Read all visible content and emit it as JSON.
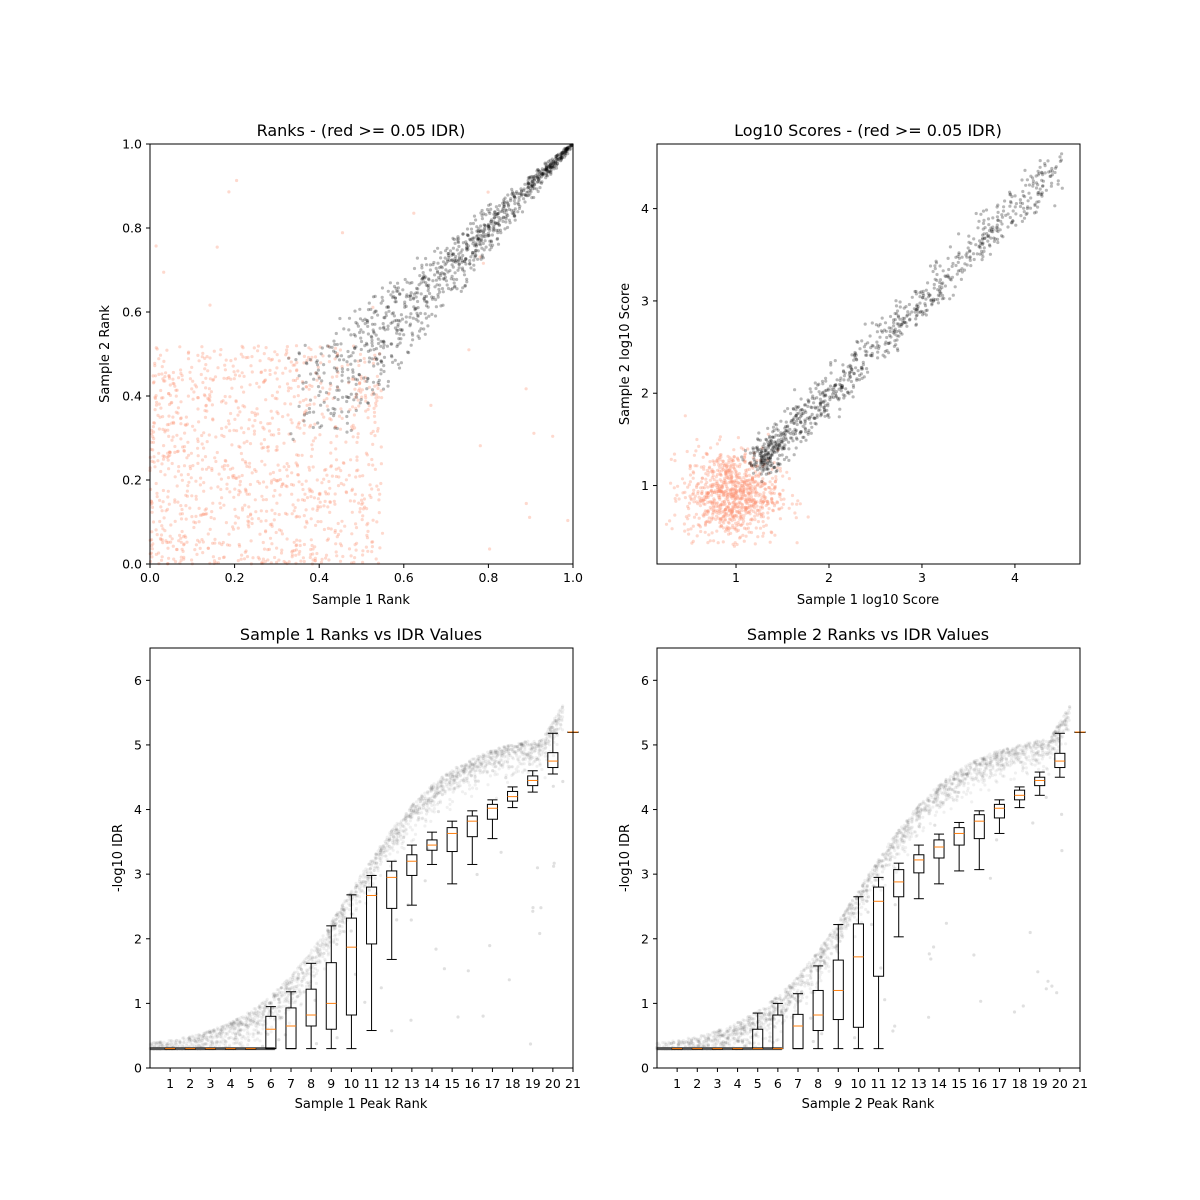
{
  "chart_data": [
    {
      "type": "scatter",
      "title": "Ranks - (red >= 0.05 IDR)",
      "xlabel": "Sample 1 Rank",
      "ylabel": "Sample 2 Rank",
      "xlim": [
        0.0,
        1.0
      ],
      "ylim": [
        0.0,
        1.0
      ],
      "xticks": [
        "0.0",
        "0.2",
        "0.4",
        "0.6",
        "0.8",
        "1.0"
      ],
      "yticks": [
        "0.0",
        "0.2",
        "0.4",
        "0.6",
        "0.8",
        "1.0"
      ],
      "grid": false,
      "colors": {
        "pass": "#000000",
        "fail": "#fc9272"
      },
      "series": [
        {
          "group": "IDR < 0.05",
          "color": "#000000",
          "x_range": [
            0.37,
            1.0
          ],
          "y_trend": "y ≈ x, spread narrowing toward (1.0, 1.0)"
        },
        {
          "group": "IDR >= 0.05",
          "color": "#fc9272",
          "x_range": [
            0.0,
            0.55
          ],
          "y_range": [
            0.0,
            0.52
          ]
        }
      ]
    },
    {
      "type": "scatter",
      "title": "Log10 Scores - (red >= 0.05 IDR)",
      "xlabel": "Sample 1 log10 Score",
      "ylabel": "Sample 2 log10 Score",
      "xlim": [
        0.15,
        4.7
      ],
      "ylim": [
        0.15,
        4.7
      ],
      "xticks": [
        "1",
        "2",
        "3",
        "4"
      ],
      "yticks": [
        "1",
        "2",
        "3",
        "4"
      ],
      "grid": false,
      "colors": {
        "pass": "#000000",
        "fail": "#fc9272"
      },
      "series": [
        {
          "group": "IDR < 0.05",
          "color": "#000000",
          "x_range": [
            1.2,
            4.5
          ],
          "y_trend": "y ≈ x"
        },
        {
          "group": "IDR >= 0.05",
          "color": "#fc9272",
          "center": [
            0.95,
            0.9
          ],
          "x_range": [
            0.25,
            1.8
          ],
          "y_range": [
            0.35,
            1.7
          ]
        }
      ]
    },
    {
      "type": "box",
      "title": "Sample 1 Ranks vs IDR Values",
      "xlabel": "Sample 1 Peak Rank",
      "ylabel": "-log10 IDR",
      "xlim": [
        0,
        21
      ],
      "ylim": [
        0,
        6.5
      ],
      "categories": [
        "1",
        "2",
        "3",
        "4",
        "5",
        "6",
        "7",
        "8",
        "9",
        "10",
        "11",
        "12",
        "13",
        "14",
        "15",
        "16",
        "17",
        "18",
        "19",
        "20",
        "21"
      ],
      "yticks": [
        "0",
        "1",
        "2",
        "3",
        "4",
        "5",
        "6"
      ],
      "grid": false,
      "boxes": [
        {
          "pos": 1,
          "whislo": 0.3,
          "q1": 0.3,
          "med": 0.3,
          "q3": 0.3,
          "whishi": 0.3
        },
        {
          "pos": 2,
          "whislo": 0.3,
          "q1": 0.3,
          "med": 0.3,
          "q3": 0.3,
          "whishi": 0.3
        },
        {
          "pos": 3,
          "whislo": 0.3,
          "q1": 0.3,
          "med": 0.3,
          "q3": 0.3,
          "whishi": 0.3
        },
        {
          "pos": 4,
          "whislo": 0.3,
          "q1": 0.3,
          "med": 0.3,
          "q3": 0.3,
          "whishi": 0.3
        },
        {
          "pos": 5,
          "whislo": 0.3,
          "q1": 0.3,
          "med": 0.3,
          "q3": 0.3,
          "whishi": 0.3
        },
        {
          "pos": 6,
          "whislo": 0.3,
          "q1": 0.3,
          "med": 0.6,
          "q3": 0.8,
          "whishi": 0.95
        },
        {
          "pos": 7,
          "whislo": 0.3,
          "q1": 0.3,
          "med": 0.65,
          "q3": 0.93,
          "whishi": 1.18
        },
        {
          "pos": 8,
          "whislo": 0.3,
          "q1": 0.65,
          "med": 0.82,
          "q3": 1.22,
          "whishi": 1.62
        },
        {
          "pos": 9,
          "whislo": 0.3,
          "q1": 0.6,
          "med": 1.0,
          "q3": 1.63,
          "whishi": 2.2
        },
        {
          "pos": 10,
          "whislo": 0.3,
          "q1": 0.82,
          "med": 1.87,
          "q3": 2.32,
          "whishi": 2.68
        },
        {
          "pos": 11,
          "whislo": 0.58,
          "q1": 1.92,
          "med": 2.67,
          "q3": 2.8,
          "whishi": 2.98
        },
        {
          "pos": 12,
          "whislo": 1.68,
          "q1": 2.47,
          "med": 2.95,
          "q3": 3.05,
          "whishi": 3.2
        },
        {
          "pos": 13,
          "whislo": 2.52,
          "q1": 2.98,
          "med": 3.2,
          "q3": 3.3,
          "whishi": 3.45
        },
        {
          "pos": 14,
          "whislo": 3.15,
          "q1": 3.37,
          "med": 3.45,
          "q3": 3.53,
          "whishi": 3.65
        },
        {
          "pos": 15,
          "whislo": 2.85,
          "q1": 3.35,
          "med": 3.63,
          "q3": 3.72,
          "whishi": 3.82
        },
        {
          "pos": 16,
          "whislo": 3.15,
          "q1": 3.58,
          "med": 3.82,
          "q3": 3.9,
          "whishi": 3.98
        },
        {
          "pos": 17,
          "whislo": 3.55,
          "q1": 3.85,
          "med": 4.02,
          "q3": 4.08,
          "whishi": 4.15
        },
        {
          "pos": 18,
          "whislo": 4.03,
          "q1": 4.13,
          "med": 4.2,
          "q3": 4.28,
          "whishi": 4.35
        },
        {
          "pos": 19,
          "whislo": 4.27,
          "q1": 4.37,
          "med": 4.45,
          "q3": 4.52,
          "whishi": 4.6
        },
        {
          "pos": 20,
          "whislo": 4.55,
          "q1": 4.65,
          "med": 4.75,
          "q3": 4.88,
          "whishi": 5.18
        },
        {
          "pos": 21,
          "whislo": 5.2,
          "q1": 5.2,
          "med": 5.2,
          "q3": 5.2,
          "whishi": 5.2
        }
      ]
    },
    {
      "type": "box",
      "title": "Sample 2 Ranks vs IDR Values",
      "xlabel": "Sample 2 Peak Rank",
      "ylabel": "-log10 IDR",
      "xlim": [
        0,
        21
      ],
      "ylim": [
        0,
        6.5
      ],
      "categories": [
        "1",
        "2",
        "3",
        "4",
        "5",
        "6",
        "7",
        "8",
        "9",
        "10",
        "11",
        "12",
        "13",
        "14",
        "15",
        "16",
        "17",
        "18",
        "19",
        "20",
        "21"
      ],
      "yticks": [
        "0",
        "1",
        "2",
        "3",
        "4",
        "5",
        "6"
      ],
      "grid": false,
      "boxes": [
        {
          "pos": 1,
          "whislo": 0.3,
          "q1": 0.3,
          "med": 0.3,
          "q3": 0.3,
          "whishi": 0.3
        },
        {
          "pos": 2,
          "whislo": 0.3,
          "q1": 0.3,
          "med": 0.3,
          "q3": 0.3,
          "whishi": 0.3
        },
        {
          "pos": 3,
          "whislo": 0.3,
          "q1": 0.3,
          "med": 0.3,
          "q3": 0.3,
          "whishi": 0.3
        },
        {
          "pos": 4,
          "whislo": 0.3,
          "q1": 0.3,
          "med": 0.3,
          "q3": 0.3,
          "whishi": 0.3
        },
        {
          "pos": 5,
          "whislo": 0.3,
          "q1": 0.3,
          "med": 0.3,
          "q3": 0.6,
          "whishi": 0.85
        },
        {
          "pos": 6,
          "whislo": 0.3,
          "q1": 0.3,
          "med": 0.3,
          "q3": 0.82,
          "whishi": 1.0
        },
        {
          "pos": 7,
          "whislo": 0.3,
          "q1": 0.3,
          "med": 0.65,
          "q3": 0.83,
          "whishi": 1.15
        },
        {
          "pos": 8,
          "whislo": 0.3,
          "q1": 0.58,
          "med": 0.82,
          "q3": 1.2,
          "whishi": 1.58
        },
        {
          "pos": 9,
          "whislo": 0.3,
          "q1": 0.75,
          "med": 1.2,
          "q3": 1.67,
          "whishi": 2.22
        },
        {
          "pos": 10,
          "whislo": 0.3,
          "q1": 0.63,
          "med": 1.72,
          "q3": 2.23,
          "whishi": 2.65
        },
        {
          "pos": 11,
          "whislo": 0.3,
          "q1": 1.42,
          "med": 2.58,
          "q3": 2.8,
          "whishi": 2.95
        },
        {
          "pos": 12,
          "whislo": 2.03,
          "q1": 2.65,
          "med": 2.88,
          "q3": 3.07,
          "whishi": 3.17
        },
        {
          "pos": 13,
          "whislo": 2.62,
          "q1": 3.02,
          "med": 3.22,
          "q3": 3.3,
          "whishi": 3.45
        },
        {
          "pos": 14,
          "whislo": 2.85,
          "q1": 3.25,
          "med": 3.42,
          "q3": 3.53,
          "whishi": 3.62
        },
        {
          "pos": 15,
          "whislo": 3.05,
          "q1": 3.45,
          "med": 3.63,
          "q3": 3.72,
          "whishi": 3.8
        },
        {
          "pos": 16,
          "whislo": 3.07,
          "q1": 3.55,
          "med": 3.82,
          "q3": 3.92,
          "whishi": 3.98
        },
        {
          "pos": 17,
          "whislo": 3.63,
          "q1": 3.87,
          "med": 4.02,
          "q3": 4.08,
          "whishi": 4.15
        },
        {
          "pos": 18,
          "whislo": 4.03,
          "q1": 4.15,
          "med": 4.22,
          "q3": 4.3,
          "whishi": 4.35
        },
        {
          "pos": 19,
          "whislo": 4.22,
          "q1": 4.37,
          "med": 4.45,
          "q3": 4.5,
          "whishi": 4.58
        },
        {
          "pos": 20,
          "whislo": 4.5,
          "q1": 4.65,
          "med": 4.75,
          "q3": 4.87,
          "whishi": 5.18
        },
        {
          "pos": 21,
          "whislo": 5.2,
          "q1": 5.2,
          "med": 5.2,
          "q3": 5.2,
          "whishi": 5.2
        }
      ]
    }
  ]
}
